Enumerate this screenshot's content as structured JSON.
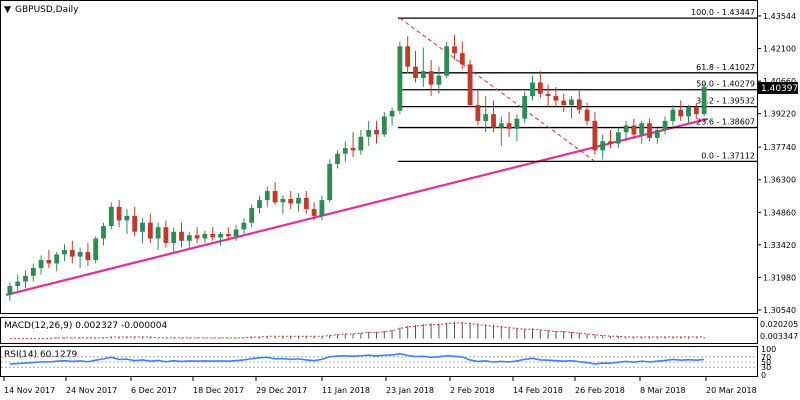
{
  "chart_data": {
    "type": "candlestick",
    "title": "GBPUSD,Daily",
    "current_price": "1.40397",
    "y_ticks": [
      "1.43544",
      "1.42100",
      "1.40660",
      "1.39220",
      "1.37740",
      "1.36300",
      "1.34860",
      "1.33420",
      "1.31980",
      "1.30540"
    ],
    "x_ticks": [
      "14 Nov 2017",
      "24 Nov 2017",
      "6 Dec 2017",
      "18 Dec 2017",
      "29 Dec 2017",
      "11 Jan 2018",
      "23 Jan 2018",
      "2 Feb 2018",
      "14 Feb 2018",
      "26 Feb 2018",
      "8 Mar 2018",
      "20 Mar 2018"
    ],
    "ylim": [
      1.3054,
      1.4354
    ],
    "candles": [
      [
        1.3121,
        1.3175,
        1.3095,
        1.316
      ],
      [
        1.316,
        1.321,
        1.314,
        1.318
      ],
      [
        1.318,
        1.323,
        1.315,
        1.3205
      ],
      [
        1.3205,
        1.326,
        1.318,
        1.324
      ],
      [
        1.324,
        1.3295,
        1.321,
        1.3275
      ],
      [
        1.3275,
        1.332,
        1.324,
        1.326
      ],
      [
        1.326,
        1.331,
        1.3225,
        1.33
      ],
      [
        1.33,
        1.3345,
        1.327,
        1.332
      ],
      [
        1.332,
        1.336,
        1.326,
        1.329
      ],
      [
        1.329,
        1.333,
        1.324,
        1.331
      ],
      [
        1.331,
        1.335,
        1.325,
        1.3275
      ],
      [
        1.3275,
        1.338,
        1.326,
        1.337
      ],
      [
        1.337,
        1.344,
        1.334,
        1.3425
      ],
      [
        1.3425,
        1.353,
        1.341,
        1.351
      ],
      [
        1.351,
        1.354,
        1.342,
        1.345
      ],
      [
        1.345,
        1.35,
        1.339,
        1.347
      ],
      [
        1.347,
        1.351,
        1.338,
        1.34
      ],
      [
        1.34,
        1.346,
        1.335,
        1.344
      ],
      [
        1.344,
        1.348,
        1.335,
        1.337
      ],
      [
        1.337,
        1.344,
        1.332,
        1.342
      ],
      [
        1.342,
        1.345,
        1.333,
        1.335
      ],
      [
        1.335,
        1.342,
        1.331,
        1.34
      ],
      [
        1.34,
        1.344,
        1.333,
        1.336
      ],
      [
        1.336,
        1.34,
        1.332,
        1.3385
      ],
      [
        1.3385,
        1.342,
        1.335,
        1.337
      ],
      [
        1.337,
        1.3405,
        1.335,
        1.339
      ],
      [
        1.339,
        1.342,
        1.336,
        1.3375
      ],
      [
        1.3375,
        1.34,
        1.334,
        1.339
      ],
      [
        1.339,
        1.342,
        1.336,
        1.338
      ],
      [
        1.338,
        1.343,
        1.336,
        1.341
      ],
      [
        1.341,
        1.346,
        1.339,
        1.344
      ],
      [
        1.344,
        1.352,
        1.342,
        1.3505
      ],
      [
        1.3505,
        1.356,
        1.348,
        1.354
      ],
      [
        1.354,
        1.36,
        1.351,
        1.358
      ],
      [
        1.358,
        1.362,
        1.352,
        1.353
      ],
      [
        1.353,
        1.356,
        1.348,
        1.3545
      ],
      [
        1.3545,
        1.358,
        1.35,
        1.3525
      ],
      [
        1.3525,
        1.357,
        1.349,
        1.355
      ],
      [
        1.355,
        1.358,
        1.348,
        1.35
      ],
      [
        1.35,
        1.353,
        1.345,
        1.347
      ],
      [
        1.347,
        1.356,
        1.345,
        1.354
      ],
      [
        1.354,
        1.372,
        1.353,
        1.37
      ],
      [
        1.37,
        1.376,
        1.368,
        1.3745
      ],
      [
        1.3745,
        1.38,
        1.371,
        1.377
      ],
      [
        1.377,
        1.384,
        1.373,
        1.376
      ],
      [
        1.376,
        1.385,
        1.374,
        1.382
      ],
      [
        1.382,
        1.389,
        1.378,
        1.385
      ],
      [
        1.385,
        1.389,
        1.379,
        1.383
      ],
      [
        1.383,
        1.393,
        1.382,
        1.391
      ],
      [
        1.391,
        1.395,
        1.387,
        1.3935
      ],
      [
        1.3935,
        1.424,
        1.392,
        1.422
      ],
      [
        1.422,
        1.4265,
        1.41,
        1.413
      ],
      [
        1.413,
        1.42,
        1.406,
        1.408
      ],
      [
        1.408,
        1.4215,
        1.404,
        1.411
      ],
      [
        1.411,
        1.416,
        1.4,
        1.405
      ],
      [
        1.405,
        1.413,
        1.401,
        1.409
      ],
      [
        1.409,
        1.424,
        1.408,
        1.422
      ],
      [
        1.422,
        1.427,
        1.416,
        1.419
      ],
      [
        1.419,
        1.424,
        1.412,
        1.414
      ],
      [
        1.414,
        1.416,
        1.395,
        1.396
      ],
      [
        1.396,
        1.403,
        1.387,
        1.389
      ],
      [
        1.389,
        1.4,
        1.384,
        1.392
      ],
      [
        1.392,
        1.398,
        1.384,
        1.386
      ],
      [
        1.386,
        1.391,
        1.378,
        1.388
      ],
      [
        1.388,
        1.393,
        1.382,
        1.3855
      ],
      [
        1.3855,
        1.392,
        1.38,
        1.39
      ],
      [
        1.39,
        1.402,
        1.388,
        1.4
      ],
      [
        1.4,
        1.409,
        1.398,
        1.406
      ],
      [
        1.406,
        1.411,
        1.399,
        1.401
      ],
      [
        1.401,
        1.405,
        1.395,
        1.4
      ],
      [
        1.4,
        1.404,
        1.395,
        1.398
      ],
      [
        1.398,
        1.401,
        1.393,
        1.396
      ],
      [
        1.396,
        1.4,
        1.39,
        1.3985
      ],
      [
        1.3985,
        1.403,
        1.392,
        1.394
      ],
      [
        1.394,
        1.397,
        1.387,
        1.389
      ],
      [
        1.389,
        1.393,
        1.374,
        1.376
      ],
      [
        1.376,
        1.383,
        1.372,
        1.38
      ],
      [
        1.38,
        1.385,
        1.377,
        1.379
      ],
      [
        1.379,
        1.386,
        1.377,
        1.384
      ],
      [
        1.384,
        1.389,
        1.38,
        1.387
      ],
      [
        1.387,
        1.39,
        1.381,
        1.383
      ],
      [
        1.383,
        1.389,
        1.379,
        1.388
      ],
      [
        1.388,
        1.39,
        1.38,
        1.3815
      ],
      [
        1.3815,
        1.386,
        1.379,
        1.385
      ],
      [
        1.385,
        1.391,
        1.383,
        1.389
      ],
      [
        1.389,
        1.396,
        1.387,
        1.394
      ],
      [
        1.394,
        1.398,
        1.389,
        1.391
      ],
      [
        1.391,
        1.396,
        1.388,
        1.395
      ],
      [
        1.395,
        1.397,
        1.39,
        1.392
      ],
      [
        1.392,
        1.406,
        1.391,
        1.404
      ]
    ],
    "trendline": {
      "color": "#e0309a",
      "from": [
        0,
        1.3125
      ],
      "to": [
        89,
        1.3895
      ]
    },
    "fib_levels": [
      {
        "label": "100.0 - 1.43447",
        "value": 1.43447
      },
      {
        "label": "61.8 - 1.41027",
        "value": 1.41027
      },
      {
        "label": "50.0 - 1.40279",
        "value": 1.40279
      },
      {
        "label": "38.2 - 1.39532",
        "value": 1.39532
      },
      {
        "label": "23.6 - 1.38607",
        "value": 1.38607
      },
      {
        "label": "0.0 - 1.37112",
        "value": 1.37112
      }
    ],
    "fib_diagonal": {
      "from": [
        50,
        1.43447
      ],
      "to": [
        75,
        1.37112
      ],
      "color": "#c0392b"
    },
    "colors": {
      "bull": "#2e8b57",
      "bear": "#c0392b",
      "fib": "#000000",
      "macd": "#c0392b",
      "rsi": "#3b82f6"
    },
    "macd": {
      "label": "MACD(12,26,9) 0.002327 -0.000004",
      "y_ticks": [
        "0.020205",
        "0.003347"
      ],
      "range": [
        -0.004,
        0.022
      ],
      "values": [
        0.0,
        0.0,
        0.0,
        0.0,
        0.0,
        0.0,
        0.001,
        0.001,
        0.001,
        0.001,
        0.001,
        0.001,
        0.001,
        0.002,
        0.002,
        0.002,
        0.002,
        0.002,
        0.002,
        0.001,
        0.001,
        0.001,
        0.001,
        0.001,
        0.001,
        0.001,
        0.001,
        0.001,
        0.001,
        0.001,
        0.001,
        0.002,
        0.002,
        0.003,
        0.003,
        0.003,
        0.003,
        0.003,
        0.003,
        0.003,
        0.003,
        0.004,
        0.005,
        0.006,
        0.006,
        0.007,
        0.008,
        0.008,
        0.009,
        0.01,
        0.013,
        0.015,
        0.016,
        0.017,
        0.018,
        0.018,
        0.019,
        0.02,
        0.02,
        0.019,
        0.018,
        0.017,
        0.016,
        0.015,
        0.014,
        0.013,
        0.012,
        0.012,
        0.011,
        0.01,
        0.009,
        0.009,
        0.008,
        0.007,
        0.006,
        0.005,
        0.004,
        0.003,
        0.003,
        0.002,
        0.002,
        0.002,
        0.002,
        0.002,
        0.002,
        0.002,
        0.002,
        0.002,
        0.002,
        0.002
      ]
    },
    "rsi": {
      "label": "RSI(14) 60.1279",
      "y_ticks": [
        "100",
        "70",
        "50",
        "30",
        "0"
      ],
      "range": [
        0,
        100
      ],
      "values": [
        42,
        44,
        46,
        48,
        51,
        50,
        53,
        55,
        52,
        54,
        51,
        57,
        62,
        68,
        60,
        61,
        55,
        58,
        53,
        56,
        51,
        55,
        52,
        54,
        53,
        54,
        53,
        54,
        53,
        55,
        58,
        63,
        66,
        68,
        62,
        63,
        60,
        62,
        58,
        55,
        60,
        70,
        73,
        74,
        72,
        74,
        76,
        73,
        76,
        77,
        82,
        75,
        71,
        72,
        68,
        70,
        74,
        72,
        69,
        58,
        52,
        54,
        50,
        52,
        50,
        54,
        60,
        64,
        58,
        57,
        55,
        53,
        55,
        51,
        48,
        42,
        46,
        45,
        49,
        52,
        49,
        53,
        50,
        53,
        56,
        60,
        57,
        59,
        57,
        60
      ]
    }
  }
}
